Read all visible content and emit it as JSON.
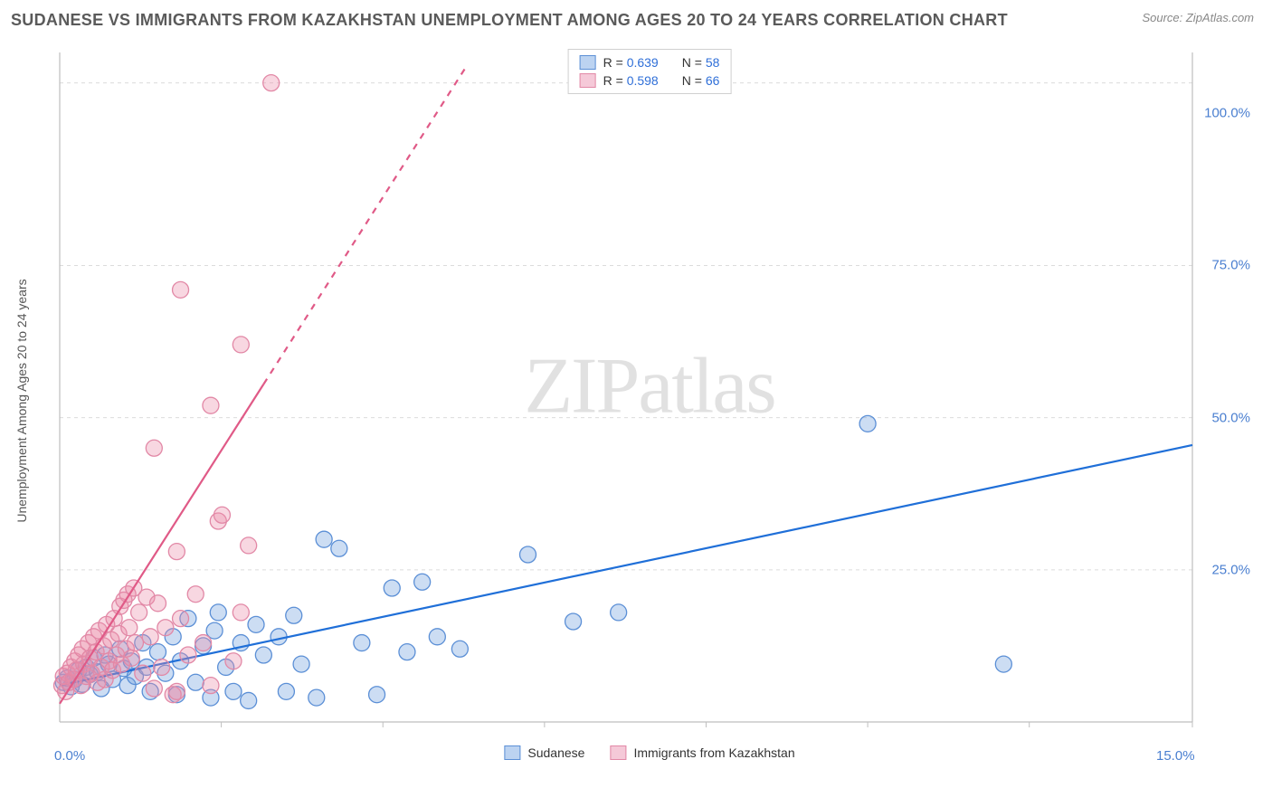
{
  "title": "SUDANESE VS IMMIGRANTS FROM KAZAKHSTAN UNEMPLOYMENT AMONG AGES 20 TO 24 YEARS CORRELATION CHART",
  "source": "Source: ZipAtlas.com",
  "watermark": "ZIPatlas",
  "ylabel": "Unemployment Among Ages 20 to 24 years",
  "chart": {
    "type": "scatter",
    "background_color": "#ffffff",
    "grid_color": "#dcdcdc",
    "axis_color": "#bfbfbf",
    "xlim": [
      0,
      15
    ],
    "ylim": [
      0,
      110
    ],
    "xtick_positions": [
      0,
      15
    ],
    "xtick_labels": [
      "0.0%",
      "15.0%"
    ],
    "ytick_positions": [
      25,
      50,
      75,
      100
    ],
    "ytick_labels": [
      "25.0%",
      "50.0%",
      "75.0%",
      "100.0%"
    ],
    "gridlines_x": [
      2.14,
      4.28,
      6.42,
      8.56,
      10.7,
      12.84,
      15.0
    ],
    "gridlines_y": [
      25,
      50,
      75,
      105
    ],
    "marker_radius": 9,
    "marker_stroke_width": 1.3,
    "line_width": 2.2,
    "series": [
      {
        "name": "Sudanese",
        "color_fill": "rgba(109,158,222,0.35)",
        "color_stroke": "#5b8fd6",
        "line_color": "#1f6fd8",
        "swatch_fill": "#bcd3f1",
        "swatch_border": "#5b8fd6",
        "R": "0.639",
        "N": "58",
        "points": [
          [
            0.05,
            6.5
          ],
          [
            0.1,
            7.2
          ],
          [
            0.15,
            5.8
          ],
          [
            0.2,
            7.0
          ],
          [
            0.25,
            8.5
          ],
          [
            0.3,
            6.2
          ],
          [
            0.35,
            9.0
          ],
          [
            0.4,
            7.8
          ],
          [
            0.45,
            10.5
          ],
          [
            0.5,
            8.2
          ],
          [
            0.55,
            5.5
          ],
          [
            0.6,
            11.0
          ],
          [
            0.65,
            9.5
          ],
          [
            0.7,
            7.0
          ],
          [
            0.8,
            12.0
          ],
          [
            0.85,
            8.8
          ],
          [
            0.9,
            6.0
          ],
          [
            0.95,
            10.0
          ],
          [
            1.0,
            7.5
          ],
          [
            1.1,
            13.0
          ],
          [
            1.15,
            9.0
          ],
          [
            1.2,
            5.0
          ],
          [
            1.3,
            11.5
          ],
          [
            1.4,
            8.0
          ],
          [
            1.5,
            14.0
          ],
          [
            1.55,
            4.5
          ],
          [
            1.6,
            10.0
          ],
          [
            1.7,
            17.0
          ],
          [
            1.8,
            6.5
          ],
          [
            1.9,
            12.5
          ],
          [
            2.0,
            4.0
          ],
          [
            2.05,
            15.0
          ],
          [
            2.1,
            18.0
          ],
          [
            2.2,
            9.0
          ],
          [
            2.3,
            5.0
          ],
          [
            2.4,
            13.0
          ],
          [
            2.5,
            3.5
          ],
          [
            2.6,
            16.0
          ],
          [
            2.7,
            11.0
          ],
          [
            2.9,
            14.0
          ],
          [
            3.0,
            5.0
          ],
          [
            3.1,
            17.5
          ],
          [
            3.2,
            9.5
          ],
          [
            3.4,
            4.0
          ],
          [
            3.5,
            30.0
          ],
          [
            3.7,
            28.5
          ],
          [
            4.0,
            13.0
          ],
          [
            4.2,
            4.5
          ],
          [
            4.4,
            22.0
          ],
          [
            4.6,
            11.5
          ],
          [
            4.8,
            23.0
          ],
          [
            5.0,
            14.0
          ],
          [
            5.3,
            12.0
          ],
          [
            6.2,
            27.5
          ],
          [
            6.8,
            16.5
          ],
          [
            7.4,
            18.0
          ],
          [
            10.7,
            49.0
          ],
          [
            12.5,
            9.5
          ]
        ],
        "trend": {
          "x1": 0,
          "y1": 6.0,
          "x2": 15,
          "y2": 45.5,
          "dash_from_x": null
        }
      },
      {
        "name": "Immigrants from Kazakhstan",
        "color_fill": "rgba(236,140,170,0.35)",
        "color_stroke": "#e288a6",
        "line_color": "#e05a87",
        "swatch_fill": "#f5c9d8",
        "swatch_border": "#e288a6",
        "R": "0.598",
        "N": "66",
        "points": [
          [
            0.03,
            6.0
          ],
          [
            0.05,
            7.5
          ],
          [
            0.08,
            5.0
          ],
          [
            0.1,
            8.0
          ],
          [
            0.12,
            6.5
          ],
          [
            0.15,
            9.0
          ],
          [
            0.18,
            7.0
          ],
          [
            0.2,
            10.0
          ],
          [
            0.22,
            8.5
          ],
          [
            0.25,
            11.0
          ],
          [
            0.28,
            6.0
          ],
          [
            0.3,
            12.0
          ],
          [
            0.32,
            9.5
          ],
          [
            0.35,
            7.5
          ],
          [
            0.38,
            13.0
          ],
          [
            0.4,
            10.5
          ],
          [
            0.42,
            8.0
          ],
          [
            0.45,
            14.0
          ],
          [
            0.48,
            11.5
          ],
          [
            0.5,
            6.5
          ],
          [
            0.52,
            15.0
          ],
          [
            0.55,
            9.0
          ],
          [
            0.58,
            12.5
          ],
          [
            0.6,
            7.0
          ],
          [
            0.62,
            16.0
          ],
          [
            0.65,
            10.0
          ],
          [
            0.68,
            13.5
          ],
          [
            0.7,
            8.5
          ],
          [
            0.72,
            17.0
          ],
          [
            0.75,
            11.0
          ],
          [
            0.78,
            14.5
          ],
          [
            0.8,
            19.0
          ],
          [
            0.82,
            9.5
          ],
          [
            0.85,
            20.0
          ],
          [
            0.88,
            12.0
          ],
          [
            0.9,
            21.0
          ],
          [
            0.92,
            15.5
          ],
          [
            0.95,
            10.5
          ],
          [
            0.98,
            22.0
          ],
          [
            1.0,
            13.0
          ],
          [
            1.05,
            18.0
          ],
          [
            1.1,
            8.0
          ],
          [
            1.15,
            20.5
          ],
          [
            1.2,
            14.0
          ],
          [
            1.25,
            5.5
          ],
          [
            1.3,
            19.5
          ],
          [
            1.35,
            9.0
          ],
          [
            1.4,
            15.5
          ],
          [
            1.5,
            4.5
          ],
          [
            1.55,
            28.0
          ],
          [
            1.6,
            17.0
          ],
          [
            1.7,
            11.0
          ],
          [
            1.8,
            21.0
          ],
          [
            1.9,
            13.0
          ],
          [
            2.0,
            6.0
          ],
          [
            2.1,
            33.0
          ],
          [
            2.15,
            34.0
          ],
          [
            2.3,
            10.0
          ],
          [
            2.4,
            18.0
          ],
          [
            2.5,
            29.0
          ],
          [
            1.25,
            45.0
          ],
          [
            1.6,
            71.0
          ],
          [
            2.0,
            52.0
          ],
          [
            2.4,
            62.0
          ],
          [
            2.8,
            105.0
          ],
          [
            1.55,
            5.0
          ]
        ],
        "trend": {
          "x1": 0,
          "y1": 3.0,
          "x2": 5.4,
          "y2": 108.0,
          "dash_from_x": 2.7
        }
      }
    ]
  },
  "legend_top_label_R": "R = ",
  "legend_top_label_N": "N = ",
  "legend_bottom": [
    "Sudanese",
    "Immigrants from Kazakhstan"
  ]
}
